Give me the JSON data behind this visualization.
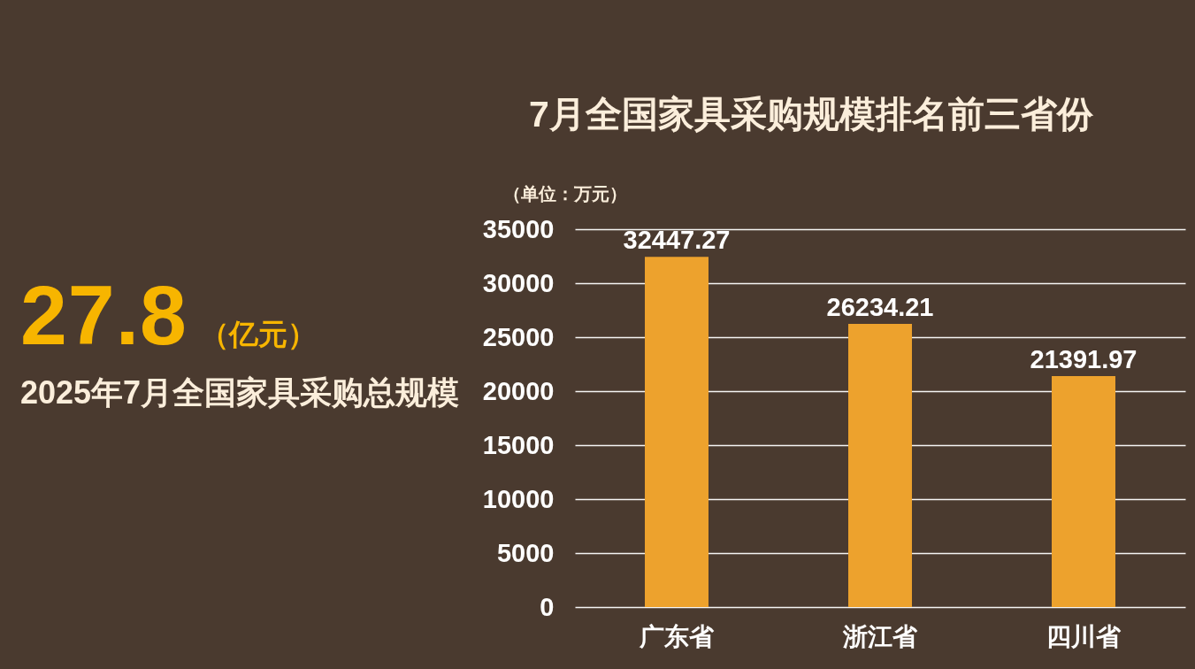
{
  "chart_data": [
    {
      "type": "other",
      "annotations": [
        "27.8",
        "（亿元）",
        "2025年7月全国家具采购总规模"
      ]
    },
    {
      "type": "bar",
      "title": "7月全国家具采购规模排名前三省份",
      "ylabel": "（单位：万元）",
      "categories": [
        "广东省",
        "浙江省",
        "四川省"
      ],
      "values": [
        32447.27,
        26234.21,
        21391.97
      ],
      "color": "#eda22d",
      "ylim": [
        0,
        35000
      ],
      "yticks": [
        0,
        5000,
        10000,
        15000,
        20000,
        25000,
        30000,
        35000
      ],
      "grid": "y",
      "data_labels": true
    }
  ]
}
